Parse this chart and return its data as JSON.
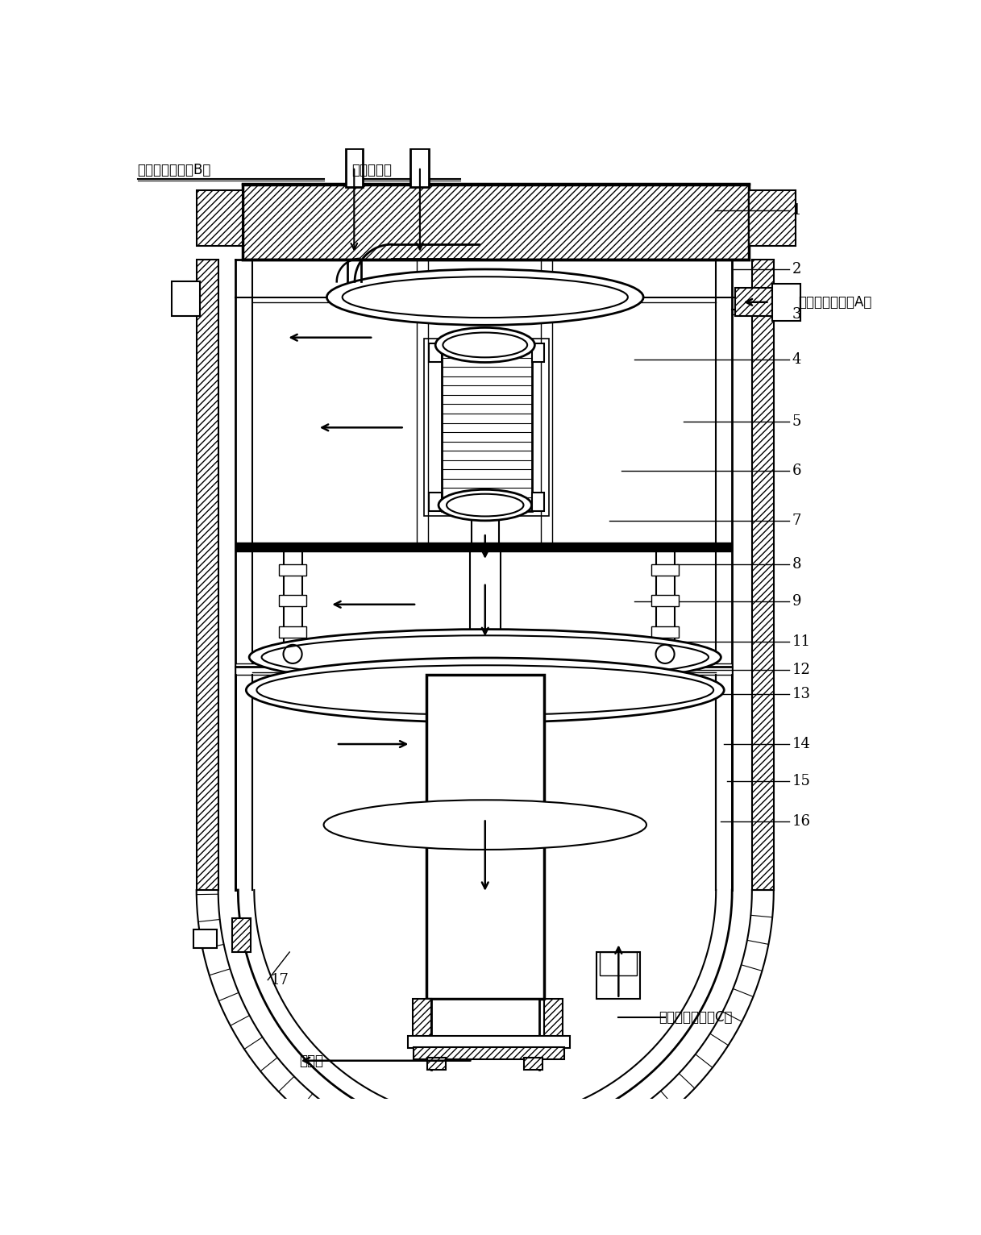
{
  "bg_color": "#ffffff",
  "lc": "#000000",
  "label_B": "未反应气（预热B）",
  "label_heat": "开工加热气",
  "label_A": "未反应气（预热A）",
  "label_C": "未反应气（预热C）",
  "label_out": "反应气",
  "numbers": [
    "1",
    "2",
    "3",
    "4",
    "5",
    "6",
    "7",
    "8",
    "9",
    "11",
    "12",
    "13",
    "14",
    "15",
    "16",
    "17"
  ],
  "fsize": 11
}
